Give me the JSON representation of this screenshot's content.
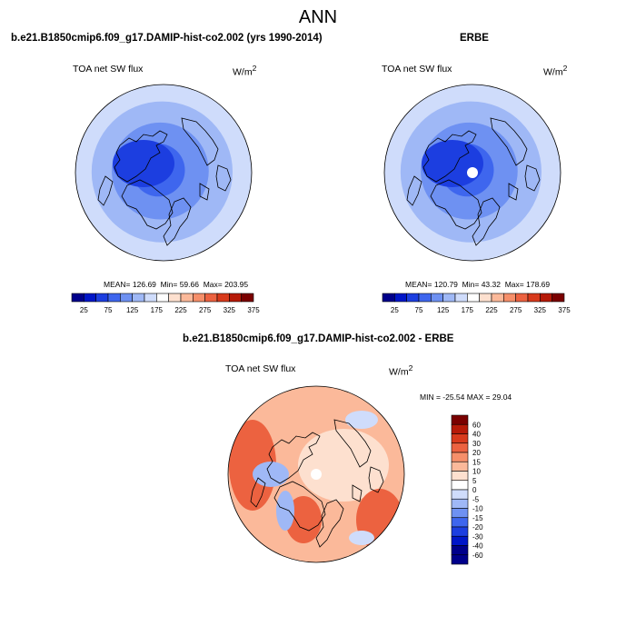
{
  "title": "ANN",
  "colors": {
    "main_scale": [
      "#00008b",
      "#0016c8",
      "#1c3ee0",
      "#3e66ee",
      "#6e91f2",
      "#9fb8f6",
      "#cfdcfb",
      "#ffffff",
      "#fde0cf",
      "#fbb99a",
      "#f68f6a",
      "#ec6240",
      "#d83a1c",
      "#b61a08",
      "#7a0000"
    ],
    "diff_scale": [
      "#00008b",
      "#0016c8",
      "#1c3ee0",
      "#3e66ee",
      "#6e91f2",
      "#9fb8f6",
      "#cfdcfb",
      "#ffffff",
      "#fde0cf",
      "#fbb99a",
      "#f68f6a",
      "#ec6240",
      "#d83a1c",
      "#b61a08",
      "#7a0000"
    ],
    "land_line": "#000000"
  },
  "chart_data": [
    {
      "type": "heatmap",
      "projection": "north polar stereographic",
      "case_title": "b.e21.B1850cmip6.f09_g17.DAMIP-hist-co2.002 (yrs 1990-2014)",
      "variable": "TOA net SW flux",
      "units": "W/m",
      "units_exp": "2",
      "stats": {
        "mean_label": "MEAN=",
        "mean": "126.69",
        "min_label": "Min=",
        "min": "59.66",
        "max_label": "Max=",
        "max": "203.95"
      },
      "colorbar": {
        "orientation": "horizontal",
        "levels": [
          25,
          50,
          75,
          100,
          125,
          150,
          175,
          200,
          225,
          250,
          275,
          300,
          325,
          350,
          375
        ],
        "tick_labels": [
          "25",
          "75",
          "125",
          "175",
          "225",
          "275",
          "325",
          "375"
        ]
      },
      "field_profile": [
        {
          "r": 0.0,
          "v": 70
        },
        {
          "r": 0.3,
          "v": 90
        },
        {
          "r": 0.55,
          "v": 115
        },
        {
          "r": 0.8,
          "v": 140
        },
        {
          "r": 1.0,
          "v": 160
        }
      ]
    },
    {
      "type": "heatmap",
      "projection": "north polar stereographic",
      "case_title": "ERBE",
      "variable": "TOA net SW flux",
      "units": "W/m",
      "units_exp": "2",
      "stats": {
        "mean_label": "MEAN=",
        "mean": "120.79",
        "min_label": "Min=",
        "min": "43.32",
        "max_label": "Max=",
        "max": "178.69"
      },
      "colorbar": {
        "orientation": "horizontal",
        "levels": [
          25,
          50,
          75,
          100,
          125,
          150,
          175,
          200,
          225,
          250,
          275,
          300,
          325,
          350,
          375
        ],
        "tick_labels": [
          "25",
          "75",
          "125",
          "175",
          "225",
          "275",
          "325",
          "375"
        ]
      },
      "field_profile": [
        {
          "r": 0.0,
          "v": 60
        },
        {
          "r": 0.3,
          "v": 80
        },
        {
          "r": 0.55,
          "v": 105
        },
        {
          "r": 0.8,
          "v": 130
        },
        {
          "r": 1.0,
          "v": 150
        }
      ],
      "missing_pole": true
    },
    {
      "type": "heatmap",
      "projection": "north polar stereographic",
      "case_title": "b.e21.B1850cmip6.f09_g17.DAMIP-hist-co2.002 - ERBE",
      "variable": "TOA net SW flux",
      "units": "W/m",
      "units_exp": "2",
      "stats": {
        "min_label": "MIN =",
        "min": "-25.54",
        "max_label": "MAX =",
        "max": "29.04"
      },
      "colorbar": {
        "orientation": "vertical",
        "levels": [
          -60,
          -40,
          -30,
          -20,
          -15,
          -10,
          -5,
          0,
          5,
          10,
          15,
          20,
          30,
          40,
          60
        ],
        "tick_labels": [
          "-60",
          "-40",
          "-30",
          "-20",
          "-15",
          "-10",
          "-5",
          "0",
          "5",
          "10",
          "15",
          "20",
          "30",
          "40",
          "60"
        ]
      },
      "missing_pole": true
    }
  ]
}
